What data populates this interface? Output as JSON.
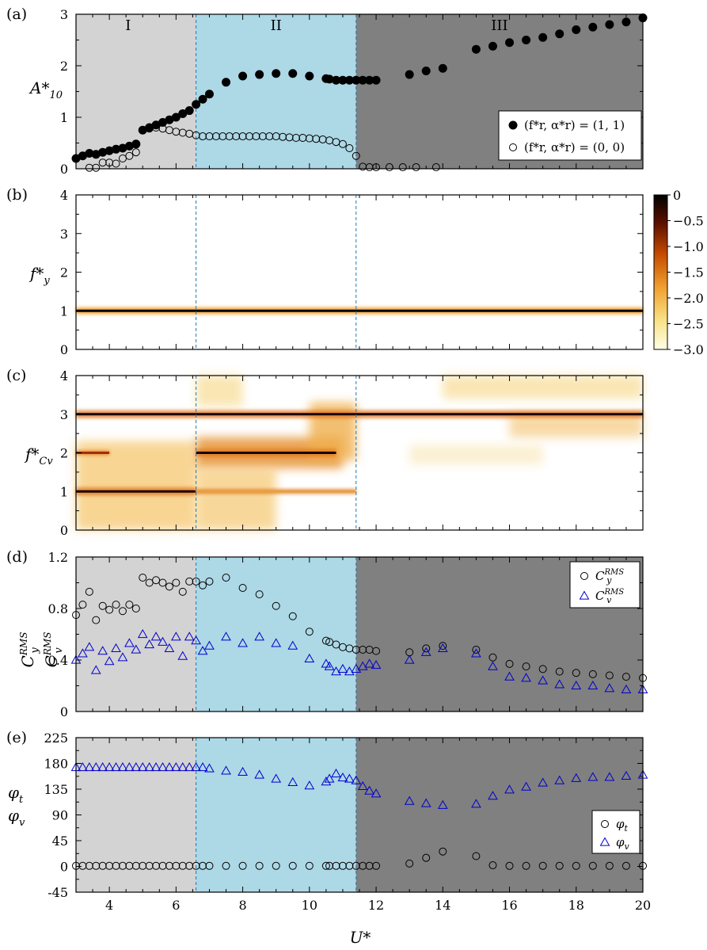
{
  "figure": {
    "x_axis_label": "U*",
    "x_ticks": [
      "4",
      "6",
      "8",
      "10",
      "12",
      "14",
      "16",
      "18",
      "20"
    ],
    "colors": {
      "region_I": "#d3d3d3",
      "region_II": "#add8e6",
      "region_III": "#808080",
      "divider": "#1f77b4",
      "series_black": "#000000",
      "series_blue": "#0000cc"
    }
  },
  "chart_data": [
    {
      "panel": "(a)",
      "type": "scatter",
      "ylabel": "A*10",
      "xlim": [
        3,
        20
      ],
      "ylim": [
        0,
        3
      ],
      "yticks": [
        "0",
        "1",
        "2",
        "3"
      ],
      "regions": [
        {
          "label": "I",
          "x": [
            3,
            6.6
          ]
        },
        {
          "label": "II",
          "x": [
            6.6,
            11.4
          ]
        },
        {
          "label": "III",
          "x": [
            11.4,
            20
          ]
        }
      ],
      "legend_position": "lower-right",
      "series": [
        {
          "name": "(f*r, α*r) = (1, 1)",
          "marker": "filled-circle",
          "x": [
            3.0,
            3.2,
            3.4,
            3.6,
            3.8,
            4.0,
            4.2,
            4.4,
            4.6,
            4.8,
            5.0,
            5.2,
            5.4,
            5.6,
            5.8,
            6.0,
            6.2,
            6.4,
            6.6,
            6.8,
            7.0,
            7.5,
            8.0,
            8.5,
            9.0,
            9.5,
            10.0,
            10.5,
            10.6,
            10.8,
            11.0,
            11.2,
            11.4,
            11.6,
            11.8,
            12.0,
            13.0,
            13.5,
            14.0,
            15.0,
            15.5,
            16.0,
            16.5,
            17.0,
            17.5,
            18.0,
            18.5,
            19.0,
            19.5,
            20.0
          ],
          "y": [
            0.2,
            0.25,
            0.3,
            0.28,
            0.32,
            0.35,
            0.38,
            0.4,
            0.44,
            0.48,
            0.75,
            0.8,
            0.85,
            0.9,
            0.95,
            1.0,
            1.07,
            1.13,
            1.25,
            1.35,
            1.45,
            1.68,
            1.8,
            1.83,
            1.85,
            1.85,
            1.8,
            1.75,
            1.74,
            1.72,
            1.72,
            1.72,
            1.72,
            1.72,
            1.72,
            1.72,
            1.83,
            1.9,
            1.95,
            2.32,
            2.38,
            2.45,
            2.5,
            2.55,
            2.62,
            2.7,
            2.75,
            2.8,
            2.85,
            2.93
          ]
        },
        {
          "name": "(f*r, α*r) = (0, 0)",
          "marker": "open-circle",
          "x": [
            3.4,
            3.6,
            3.8,
            4.0,
            4.2,
            4.4,
            4.6,
            4.8,
            5.0,
            5.2,
            5.4,
            5.6,
            5.8,
            6.0,
            6.2,
            6.4,
            6.6,
            6.8,
            7.0,
            7.2,
            7.4,
            7.6,
            7.8,
            8.0,
            8.2,
            8.4,
            8.6,
            8.8,
            9.0,
            9.2,
            9.4,
            9.6,
            9.8,
            10.0,
            10.2,
            10.4,
            10.6,
            10.8,
            11.0,
            11.2,
            11.4,
            11.6,
            11.8,
            12.0,
            12.4,
            12.8,
            13.2,
            13.8
          ],
          "y": [
            0.02,
            0.02,
            0.12,
            0.12,
            0.1,
            0.2,
            0.25,
            0.32,
            0.75,
            0.78,
            0.8,
            0.78,
            0.75,
            0.72,
            0.7,
            0.68,
            0.65,
            0.63,
            0.63,
            0.63,
            0.63,
            0.63,
            0.63,
            0.63,
            0.63,
            0.63,
            0.63,
            0.63,
            0.63,
            0.62,
            0.61,
            0.6,
            0.6,
            0.59,
            0.58,
            0.57,
            0.55,
            0.52,
            0.48,
            0.4,
            0.25,
            0.04,
            0.03,
            0.03,
            0.03,
            0.03,
            0.03,
            0.03
          ]
        }
      ]
    },
    {
      "panel": "(b)",
      "type": "heatmap",
      "ylabel": "f*y",
      "xlim": [
        3,
        20
      ],
      "ylim": [
        0,
        4
      ],
      "yticks": [
        "0",
        "1",
        "2",
        "3",
        "4"
      ],
      "colorbar": {
        "range": [
          -3,
          0
        ],
        "ticks": [
          "0",
          "−0.5",
          "−1.0",
          "−1.5",
          "−2.0",
          "−2.5",
          "−3.0"
        ]
      },
      "bands": [
        {
          "y": 1.0,
          "x": [
            3,
            20
          ],
          "level": 0
        }
      ]
    },
    {
      "panel": "(c)",
      "type": "heatmap",
      "ylabel": "f*Cv",
      "xlim": [
        3,
        20
      ],
      "ylim": [
        0,
        4
      ],
      "yticks": [
        "0",
        "1",
        "2",
        "3",
        "4"
      ],
      "bands": [
        {
          "y": 3.0,
          "x": [
            3,
            20
          ],
          "level": 0
        },
        {
          "y": 2.0,
          "x": [
            6.6,
            10.8
          ],
          "level": -0.3
        },
        {
          "y": 2.0,
          "x": [
            3,
            4
          ],
          "level": -1.0
        },
        {
          "y": 1.0,
          "x": [
            3,
            6.6
          ],
          "level": -0.8
        },
        {
          "y": 1.0,
          "x": [
            6.6,
            11.4
          ],
          "level": -2.2
        }
      ]
    },
    {
      "panel": "(d)",
      "type": "scatter",
      "ylabel": "C_y^RMS, C_v^RMS",
      "xlim": [
        3,
        20
      ],
      "ylim": [
        0,
        1.2
      ],
      "yticks": [
        "0",
        "0.4",
        "0.8",
        "1.2"
      ],
      "legend_position": "top-right",
      "series": [
        {
          "name": "C_y^RMS",
          "marker": "open-circle",
          "x": [
            3.0,
            3.2,
            3.4,
            3.6,
            3.8,
            4.0,
            4.2,
            4.4,
            4.6,
            4.8,
            5.0,
            5.2,
            5.4,
            5.6,
            5.8,
            6.0,
            6.2,
            6.4,
            6.6,
            6.8,
            7.0,
            7.5,
            8.0,
            8.5,
            9.0,
            9.5,
            10.0,
            10.5,
            10.6,
            10.8,
            11.0,
            11.2,
            11.4,
            11.6,
            11.8,
            12.0,
            13.0,
            13.5,
            14.0,
            15.0,
            15.5,
            16.0,
            16.5,
            17.0,
            17.5,
            18.0,
            18.5,
            19.0,
            19.5,
            20.0
          ],
          "y": [
            0.75,
            0.83,
            0.93,
            0.71,
            0.82,
            0.79,
            0.83,
            0.78,
            0.83,
            0.8,
            1.04,
            1.0,
            1.02,
            1.0,
            0.97,
            1.0,
            0.93,
            1.01,
            1.01,
            0.98,
            1.01,
            1.04,
            0.96,
            0.91,
            0.82,
            0.74,
            0.62,
            0.55,
            0.54,
            0.52,
            0.5,
            0.49,
            0.48,
            0.48,
            0.48,
            0.47,
            0.46,
            0.49,
            0.51,
            0.48,
            0.42,
            0.37,
            0.35,
            0.33,
            0.31,
            0.3,
            0.29,
            0.28,
            0.27,
            0.26
          ]
        },
        {
          "name": "C_v^RMS",
          "marker": "open-triangle",
          "x": [
            3.0,
            3.2,
            3.4,
            3.6,
            3.8,
            4.0,
            4.2,
            4.4,
            4.6,
            4.8,
            5.0,
            5.2,
            5.4,
            5.6,
            5.8,
            6.0,
            6.2,
            6.4,
            6.6,
            6.8,
            7.0,
            7.5,
            8.0,
            8.5,
            9.0,
            9.5,
            10.0,
            10.5,
            10.6,
            10.8,
            11.0,
            11.2,
            11.4,
            11.6,
            11.8,
            12.0,
            13.0,
            13.5,
            14.0,
            15.0,
            15.5,
            16.0,
            16.5,
            17.0,
            17.5,
            18.0,
            18.5,
            19.0,
            19.5,
            20.0
          ],
          "y": [
            0.4,
            0.45,
            0.5,
            0.32,
            0.47,
            0.39,
            0.49,
            0.42,
            0.53,
            0.48,
            0.6,
            0.52,
            0.58,
            0.54,
            0.49,
            0.58,
            0.43,
            0.58,
            0.55,
            0.47,
            0.51,
            0.58,
            0.53,
            0.58,
            0.53,
            0.51,
            0.41,
            0.37,
            0.35,
            0.31,
            0.33,
            0.31,
            0.33,
            0.35,
            0.37,
            0.36,
            0.4,
            0.46,
            0.49,
            0.45,
            0.35,
            0.27,
            0.26,
            0.24,
            0.21,
            0.2,
            0.2,
            0.18,
            0.17,
            0.17
          ]
        }
      ]
    },
    {
      "panel": "(e)",
      "type": "scatter",
      "ylabel": "φt, φv",
      "xlim": [
        3,
        20
      ],
      "ylim": [
        -45,
        225
      ],
      "yticks": [
        "225",
        "180",
        "135",
        "90",
        "45",
        "0",
        "-45"
      ],
      "legend_position": "right",
      "series": [
        {
          "name": "φt",
          "marker": "open-circle",
          "x": [
            3.0,
            3.2,
            3.4,
            3.6,
            3.8,
            4.0,
            4.2,
            4.4,
            4.6,
            4.8,
            5.0,
            5.2,
            5.4,
            5.6,
            5.8,
            6.0,
            6.2,
            6.4,
            6.6,
            6.8,
            7.0,
            7.5,
            8.0,
            8.5,
            9.0,
            9.5,
            10.0,
            10.5,
            10.6,
            10.8,
            11.0,
            11.2,
            11.4,
            11.6,
            11.8,
            12.0,
            13.0,
            13.5,
            14.0,
            15.0,
            15.5,
            16.0,
            16.5,
            17.0,
            17.5,
            18.0,
            18.5,
            19.0,
            19.5,
            20.0
          ],
          "y": [
            1,
            1,
            1,
            1,
            1,
            1,
            1,
            1,
            1,
            1,
            1,
            1,
            1,
            1,
            1,
            1,
            1,
            1,
            1,
            1,
            1,
            1,
            1,
            1,
            1,
            1,
            1,
            1,
            1,
            1,
            1,
            1,
            1,
            1,
            1,
            1,
            5,
            15,
            26,
            18,
            2,
            1,
            1,
            1,
            1,
            1,
            1,
            1,
            1,
            1
          ]
        },
        {
          "name": "φv",
          "marker": "open-triangle",
          "x": [
            3.0,
            3.2,
            3.4,
            3.6,
            3.8,
            4.0,
            4.2,
            4.4,
            4.6,
            4.8,
            5.0,
            5.2,
            5.4,
            5.6,
            5.8,
            6.0,
            6.2,
            6.4,
            6.6,
            6.8,
            7.0,
            7.5,
            8.0,
            8.5,
            9.0,
            9.5,
            10.0,
            10.5,
            10.6,
            10.8,
            11.0,
            11.2,
            11.4,
            11.6,
            11.8,
            12.0,
            13.0,
            13.5,
            14.0,
            15.0,
            15.5,
            16.0,
            16.5,
            17.0,
            17.5,
            18.0,
            18.5,
            19.0,
            19.5,
            20.0
          ],
          "y": [
            173,
            173,
            173,
            173,
            173,
            173,
            173,
            173,
            173,
            173,
            173,
            173,
            173,
            173,
            173,
            173,
            173,
            173,
            173,
            173,
            171,
            167,
            165,
            160,
            153,
            147,
            141,
            148,
            153,
            162,
            155,
            153,
            150,
            140,
            132,
            127,
            114,
            110,
            107,
            109,
            123,
            134,
            139,
            146,
            150,
            154,
            156,
            156,
            158,
            160
          ]
        }
      ]
    }
  ]
}
